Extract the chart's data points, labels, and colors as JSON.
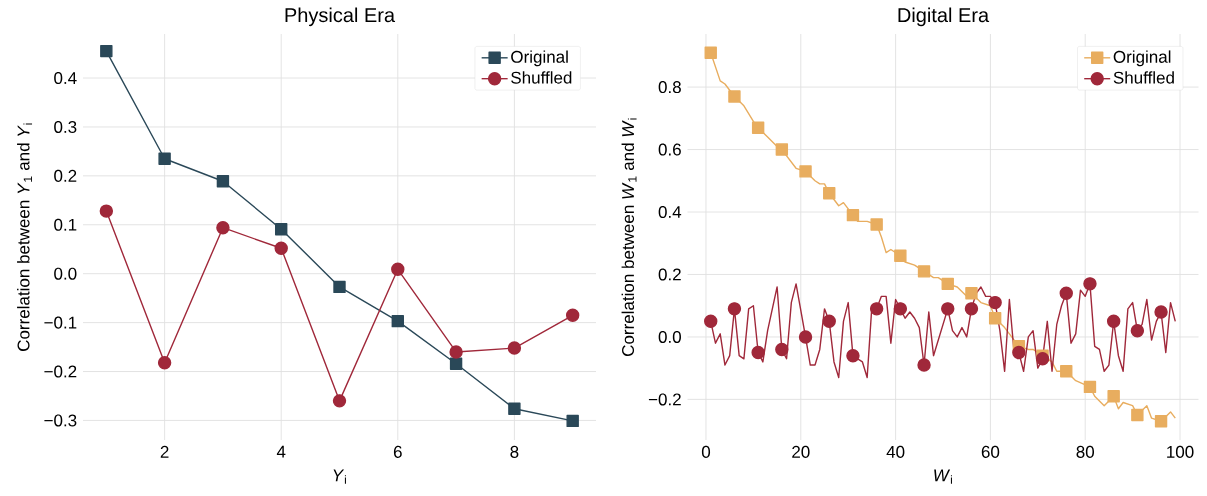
{
  "chart_data": [
    {
      "type": "line",
      "title": "Physical Era",
      "xlabel": "*Y*$_{i}$",
      "ylabel": "Correlation between *Y*$_{1}$ and *Y*$_{i}$",
      "x": [
        1,
        2,
        3,
        4,
        5,
        6,
        7,
        8,
        9
      ],
      "series": [
        {
          "name": "Original",
          "color": "#2a4858",
          "marker": "square",
          "values": [
            0.455,
            0.235,
            0.189,
            0.091,
            -0.027,
            -0.097,
            -0.184,
            -0.276,
            -0.301
          ]
        },
        {
          "name": "Shuffled",
          "color": "#a0283a",
          "marker": "circle",
          "values": [
            0.128,
            -0.182,
            0.094,
            0.052,
            -0.26,
            0.009,
            -0.16,
            -0.152,
            -0.085
          ]
        }
      ],
      "xlim": [
        0.6,
        9.4
      ],
      "xticks": [
        2,
        4,
        6,
        8
      ],
      "ylim": [
        -0.34,
        0.49
      ],
      "yticks": [
        {
          "value": -0.3,
          "label": "−0.3"
        },
        {
          "value": -0.2,
          "label": "−0.2"
        },
        {
          "value": -0.1,
          "label": "−0.1"
        },
        {
          "value": 0.0,
          "label": "0.0"
        },
        {
          "value": 0.1,
          "label": "0.1"
        },
        {
          "value": 0.2,
          "label": "0.2"
        },
        {
          "value": 0.3,
          "label": "0.3"
        },
        {
          "value": 0.4,
          "label": "0.4"
        }
      ],
      "grid": true,
      "legend": "top right",
      "line_style": "solid"
    },
    {
      "type": "line",
      "title": "Digital Era",
      "xlabel": "*W*$_{i}$",
      "ylabel": "Correlation between *W*$_{1}$ and *W*$_{i}$",
      "series": [
        {
          "color": "#e8ad5f",
          "marker": "none",
          "x": [
            1,
            3,
            4,
            6,
            8,
            10,
            11,
            13,
            15,
            16,
            18,
            19,
            21,
            23,
            24,
            25,
            26,
            28,
            29,
            31,
            32,
            34,
            36,
            37,
            38,
            39,
            41,
            42,
            44,
            46,
            48,
            49,
            51,
            53,
            55,
            56,
            58,
            60,
            61,
            63,
            64,
            66,
            68,
            69,
            71,
            73,
            74,
            76,
            78,
            81,
            82,
            84,
            86,
            87,
            88,
            90,
            91,
            93,
            94,
            96,
            98,
            99
          ],
          "values": [
            0.91,
            0.82,
            0.81,
            0.77,
            0.74,
            0.69,
            0.67,
            0.64,
            0.61,
            0.6,
            0.56,
            0.54,
            0.53,
            0.5,
            0.49,
            0.49,
            0.46,
            0.42,
            0.43,
            0.39,
            0.37,
            0.37,
            0.36,
            0.32,
            0.27,
            0.28,
            0.26,
            0.24,
            0.23,
            0.21,
            0.19,
            0.19,
            0.17,
            0.16,
            0.13,
            0.14,
            0.11,
            0.1,
            0.06,
            0.03,
            0.01,
            -0.03,
            -0.04,
            -0.04,
            -0.06,
            -0.08,
            -0.11,
            -0.11,
            -0.14,
            -0.16,
            -0.19,
            -0.22,
            -0.19,
            -0.23,
            -0.21,
            -0.22,
            -0.25,
            -0.22,
            -0.26,
            -0.27,
            -0.24,
            -0.26
          ]
        },
        {
          "name": "Original",
          "type": "scatter",
          "color": "#e8ad5f",
          "marker": "square",
          "x": [
            1,
            6,
            11,
            16,
            21,
            26,
            31,
            36,
            41,
            46,
            51,
            56,
            61,
            66,
            71,
            76,
            81,
            86,
            91,
            96
          ],
          "values": [
            0.91,
            0.77,
            0.67,
            0.6,
            0.53,
            0.46,
            0.39,
            0.36,
            0.26,
            0.21,
            0.17,
            0.14,
            0.06,
            -0.03,
            -0.06,
            -0.11,
            -0.16,
            -0.19,
            -0.25,
            -0.27
          ]
        },
        {
          "color": "#a0283a",
          "marker": "none",
          "x": [
            1,
            2,
            3,
            4,
            5,
            6,
            7,
            8,
            9,
            10,
            11,
            12,
            13,
            15,
            16,
            17,
            18,
            19,
            21,
            22,
            23,
            24,
            25,
            26,
            27,
            28,
            29,
            30,
            31,
            32,
            33,
            34,
            35,
            36,
            37,
            38,
            39,
            40,
            41,
            42,
            43,
            44,
            45,
            46,
            47,
            48,
            51,
            52,
            53,
            54,
            55,
            56,
            57,
            58,
            59,
            60,
            61,
            62,
            63,
            64,
            65,
            66,
            67,
            68,
            69,
            70,
            71,
            72,
            73,
            74,
            75,
            76,
            77,
            78,
            79,
            80,
            81,
            82,
            83,
            84,
            85,
            86,
            87,
            88,
            89,
            90,
            91,
            92,
            93,
            94,
            95,
            96,
            97,
            98,
            99
          ],
          "values": [
            0.05,
            -0.02,
            0.01,
            -0.09,
            -0.06,
            0.09,
            -0.06,
            -0.07,
            0.09,
            0.1,
            -0.05,
            -0.08,
            0.02,
            0.16,
            -0.04,
            -0.07,
            0.11,
            0.17,
            0.0,
            -0.09,
            -0.09,
            -0.04,
            0.09,
            0.05,
            -0.08,
            -0.13,
            0.05,
            0.11,
            -0.06,
            -0.07,
            -0.08,
            -0.13,
            0.1,
            0.09,
            0.13,
            0.13,
            -0.02,
            0.12,
            0.09,
            0.06,
            0.08,
            0.06,
            0.03,
            -0.09,
            0.08,
            -0.06,
            0.09,
            0.02,
            0.0,
            0.03,
            0.0,
            0.09,
            0.14,
            0.16,
            0.13,
            0.13,
            0.11,
            0.02,
            -0.11,
            0.12,
            -0.05,
            -0.05,
            -0.11,
            0.0,
            0.02,
            -0.1,
            -0.07,
            0.05,
            -0.11,
            0.04,
            0.1,
            0.14,
            -0.02,
            0.01,
            0.15,
            0.13,
            0.17,
            -0.03,
            -0.04,
            -0.11,
            -0.09,
            0.05,
            -0.06,
            -0.11,
            0.09,
            0.11,
            0.02,
            0.04,
            0.12,
            -0.01,
            0.05,
            0.08,
            -0.05,
            0.11,
            0.05
          ]
        },
        {
          "name": "Shuffled",
          "type": "scatter",
          "color": "#a0283a",
          "marker": "circle",
          "x": [
            1,
            6,
            11,
            16,
            21,
            26,
            31,
            36,
            41,
            46,
            51,
            56,
            61,
            66,
            71,
            76,
            81,
            86,
            91,
            96
          ],
          "values": [
            0.05,
            0.09,
            -0.05,
            -0.04,
            0.0,
            0.05,
            -0.06,
            0.09,
            0.09,
            -0.09,
            0.09,
            0.09,
            0.11,
            -0.05,
            -0.07,
            0.14,
            0.17,
            0.05,
            0.02,
            0.08
          ]
        }
      ],
      "xlim": [
        -3.9,
        103.9
      ],
      "xticks": [
        0,
        20,
        40,
        60,
        80,
        100
      ],
      "ylim": [
        -0.33,
        0.97
      ],
      "yticks": [
        {
          "value": -0.2,
          "label": "−0.2"
        },
        {
          "value": 0.0,
          "label": "0.0"
        },
        {
          "value": 0.2,
          "label": "0.2"
        },
        {
          "value": 0.4,
          "label": "0.4"
        },
        {
          "value": 0.6,
          "label": "0.6"
        },
        {
          "value": 0.8,
          "label": "0.8"
        }
      ],
      "grid": true,
      "legend": "top right",
      "line_style": "solid"
    }
  ]
}
